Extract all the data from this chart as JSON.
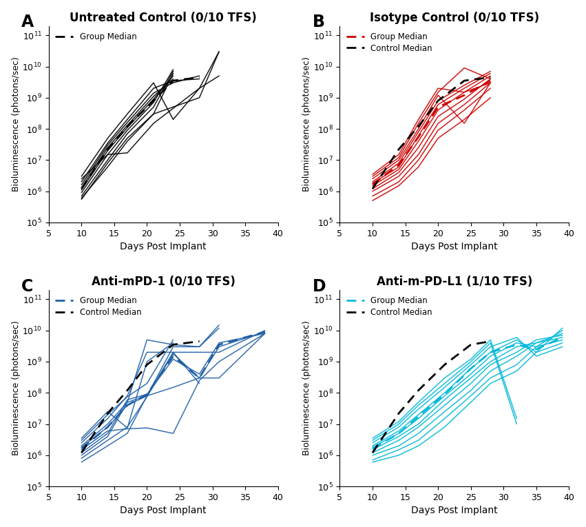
{
  "panel_A": {
    "title": "Untreated Control (0/10 TFS)",
    "label": "A",
    "color": "#000000",
    "mice": [
      {
        "x": [
          10,
          14,
          17,
          21,
          24
        ],
        "y": [
          550000.0,
          8000000.0,
          50000000.0,
          300000000.0,
          6000000000.0
        ]
      },
      {
        "x": [
          10,
          14,
          17,
          21,
          24
        ],
        "y": [
          700000.0,
          10000000.0,
          70000000.0,
          500000000.0,
          7000000000.0
        ]
      },
      {
        "x": [
          10,
          14,
          17,
          21,
          24
        ],
        "y": [
          900000.0,
          15000000.0,
          90000000.0,
          700000000.0,
          8000000000.0
        ]
      },
      {
        "x": [
          10,
          14,
          17,
          21,
          24
        ],
        "y": [
          1100000.0,
          20000000.0,
          110000000.0,
          900000000.0,
          5000000000.0
        ]
      },
      {
        "x": [
          10,
          14,
          17,
          21,
          24
        ],
        "y": [
          1300000.0,
          25000000.0,
          130000000.0,
          1100000000.0,
          4000000000.0
        ]
      },
      {
        "x": [
          10,
          14,
          17,
          21,
          24,
          28
        ],
        "y": [
          1600000.0,
          30000000.0,
          160000000.0,
          1400000000.0,
          3000000000.0,
          5000000000.0
        ]
      },
      {
        "x": [
          10,
          14,
          17,
          21,
          24,
          28
        ],
        "y": [
          2000000.0,
          35000000.0,
          200000000.0,
          2000000000.0,
          3500000000.0,
          4000000000.0
        ]
      },
      {
        "x": [
          10,
          14,
          17,
          21,
          28,
          31
        ],
        "y": [
          2500000.0,
          15000000.0,
          17000000.0,
          150000000.0,
          2000000000.0,
          30000000000.0
        ]
      },
      {
        "x": [
          10,
          14,
          17,
          21,
          24,
          28,
          31
        ],
        "y": [
          3000000.0,
          50000000.0,
          300000000.0,
          3000000000.0,
          200000000.0,
          2000000000.0,
          5000000000.0
        ]
      },
      {
        "x": [
          10,
          14,
          17,
          21,
          28,
          31
        ],
        "y": [
          600000.0,
          6000000.0,
          40000000.0,
          300000000.0,
          1000000000.0,
          30000000000.0
        ]
      }
    ],
    "group_median": {
      "x": [
        10,
        14,
        17,
        21,
        24,
        28
      ],
      "y": [
        1200000.0,
        22000000.0,
        120000000.0,
        800000000.0,
        3500000000.0,
        4500000000.0
      ]
    }
  },
  "panel_B": {
    "title": "Isotype Control (0/10 TFS)",
    "label": "B",
    "color": "#cc0000",
    "mice": [
      {
        "x": [
          10,
          14,
          17,
          20,
          24,
          28
        ],
        "y": [
          500000.0,
          1500000.0,
          6000000.0,
          50000000.0,
          200000000.0,
          1000000000.0
        ]
      },
      {
        "x": [
          10,
          14,
          17,
          20,
          24,
          28
        ],
        "y": [
          700000.0,
          2000000.0,
          10000000.0,
          90000000.0,
          400000000.0,
          2000000000.0
        ]
      },
      {
        "x": [
          10,
          14,
          17,
          20,
          24,
          28
        ],
        "y": [
          1000000.0,
          3000000.0,
          15000000.0,
          150000000.0,
          600000000.0,
          3000000000.0
        ]
      },
      {
        "x": [
          10,
          14,
          17,
          20,
          24,
          28
        ],
        "y": [
          1200000.0,
          4000000.0,
          25000000.0,
          250000000.0,
          900000000.0,
          4000000000.0
        ]
      },
      {
        "x": [
          10,
          14,
          17,
          20,
          24,
          28
        ],
        "y": [
          1500000.0,
          5000000.0,
          40000000.0,
          400000000.0,
          1500000000.0,
          5000000000.0
        ]
      },
      {
        "x": [
          10,
          14,
          17,
          20,
          24,
          28
        ],
        "y": [
          1800000.0,
          6000000.0,
          60000000.0,
          600000000.0,
          2000000000.0,
          6000000000.0
        ]
      },
      {
        "x": [
          10,
          14,
          17,
          20,
          24,
          28
        ],
        "y": [
          2000000.0,
          8000000.0,
          80000000.0,
          800000000.0,
          2500000000.0,
          7000000000.0
        ]
      },
      {
        "x": [
          10,
          14,
          17,
          20,
          24,
          28
        ],
        "y": [
          2500000.0,
          10000000.0,
          100000000.0,
          1200000000.0,
          150000000.0,
          3000000000.0
        ]
      },
      {
        "x": [
          10,
          14,
          17,
          20,
          24,
          28
        ],
        "y": [
          3000000.0,
          12000000.0,
          150000000.0,
          1500000000.0,
          9000000000.0,
          4000000000.0
        ]
      },
      {
        "x": [
          10,
          14,
          17,
          20,
          24,
          28
        ],
        "y": [
          3500000.0,
          15000000.0,
          200000000.0,
          2000000000.0,
          1500000000.0,
          3000000000.0
        ]
      }
    ],
    "group_median": {
      "x": [
        10,
        14,
        17,
        20,
        24,
        28
      ],
      "y": [
        1650000.0,
        7000000.0,
        55000000.0,
        500000000.0,
        1200000000.0,
        3500000000.0
      ]
    },
    "control_median": {
      "x": [
        10,
        14,
        17,
        20,
        24,
        28
      ],
      "y": [
        1200000.0,
        22000000.0,
        120000000.0,
        800000000.0,
        3500000000.0,
        4500000000.0
      ]
    }
  },
  "panel_C": {
    "title": "Anti-mPD-1 (0/10 TFS)",
    "label": "C",
    "color": "#1f5fa6",
    "mice": [
      {
        "x": [
          10,
          14,
          17,
          20,
          24,
          28,
          31,
          38
        ],
        "y": [
          600000.0,
          2000000.0,
          5000000.0,
          80000000.0,
          2000000000.0,
          2000000000.0,
          2000000000.0,
          10000000000.0
        ]
      },
      {
        "x": [
          10,
          14,
          17,
          20,
          24,
          28,
          31,
          38
        ],
        "y": [
          800000.0,
          3000000.0,
          8000000.0,
          75000000.0,
          1800000000.0,
          300000000.0,
          300000000.0,
          8000000000.0
        ]
      },
      {
        "x": [
          10,
          14,
          17,
          20,
          24,
          28,
          31,
          38
        ],
        "y": [
          1000000.0,
          4000000.0,
          50000000.0,
          80000000.0,
          150000000.0,
          300000000.0,
          3000000000.0,
          9000000000.0
        ]
      },
      {
        "x": [
          10,
          14,
          17,
          20,
          24,
          28,
          31,
          38
        ],
        "y": [
          1200000.0,
          5000000.0,
          60000000.0,
          90000000.0,
          1200000000.0,
          400000000.0,
          4000000000.0,
          8000000000.0
        ]
      },
      {
        "x": [
          10,
          14,
          17,
          20,
          24,
          28,
          31,
          38
        ],
        "y": [
          1500000.0,
          6000000.0,
          7000000.0,
          7500000.0,
          5000000.0,
          250000000.0,
          1000000000.0,
          8000000000.0
        ]
      },
      {
        "x": [
          10,
          14,
          17,
          20,
          24,
          28,
          31
        ],
        "y": [
          1800000.0,
          8000000.0,
          40000000.0,
          80000000.0,
          3000000000.0,
          3000000000.0,
          15000000000.0
        ]
      },
      {
        "x": [
          10,
          14,
          17,
          20,
          24,
          28,
          31
        ],
        "y": [
          2000000.0,
          10000000.0,
          50000000.0,
          5000000000.0,
          3500000000.0,
          3000000000.0,
          12000000000.0
        ]
      },
      {
        "x": [
          10,
          14,
          17,
          20,
          24,
          28
        ],
        "y": [
          2500000.0,
          15000000.0,
          80000000.0,
          2000000000.0,
          2000000000.0,
          200000000.0
        ]
      },
      {
        "x": [
          10,
          14,
          17,
          20,
          24
        ],
        "y": [
          3000000.0,
          20000000.0,
          75000000.0,
          200000000.0,
          5000000000.0
        ]
      },
      {
        "x": [
          10,
          14,
          17,
          20,
          24
        ],
        "y": [
          3500000.0,
          25000000.0,
          7500000.0,
          1000000000.0,
          4000000000.0
        ]
      }
    ],
    "group_median": {
      "x": [
        10,
        14,
        17,
        20,
        24,
        28,
        31,
        38
      ],
      "y": [
        1650000.0,
        8000000.0,
        40000000.0,
        90000000.0,
        1500000000.0,
        300000000.0,
        3500000000.0,
        9000000000.0
      ]
    },
    "control_median": {
      "x": [
        10,
        14,
        17,
        20,
        24,
        28
      ],
      "y": [
        1200000.0,
        22000000.0,
        120000000.0,
        800000000.0,
        3500000000.0,
        4500000000.0
      ]
    }
  },
  "panel_D": {
    "title": "Anti-m-PD-L1 (1/10 TFS)",
    "label": "D",
    "color": "#00b8d9",
    "mice": [
      {
        "x": [
          10,
          14,
          17,
          21,
          25,
          28,
          32,
          35,
          39
        ],
        "y": [
          600000.0,
          1000000.0,
          2000000.0,
          8000000.0,
          50000000.0,
          200000000.0,
          500000000.0,
          2000000000.0,
          12000000000.0
        ]
      },
      {
        "x": [
          10,
          14,
          17,
          21,
          25,
          28,
          32,
          35,
          39
        ],
        "y": [
          700000.0,
          1500000.0,
          3000000.0,
          15000000.0,
          80000000.0,
          300000000.0,
          800000000.0,
          3000000000.0,
          10000000000.0
        ]
      },
      {
        "x": [
          10,
          14,
          17,
          21,
          25,
          28,
          32,
          35,
          39
        ],
        "y": [
          1000000.0,
          2000000.0,
          5000000.0,
          25000000.0,
          120000000.0,
          500000000.0,
          1500000000.0,
          4000000000.0,
          8000000000.0
        ]
      },
      {
        "x": [
          10,
          14,
          17,
          21,
          25,
          28,
          32,
          35,
          39
        ],
        "y": [
          1200000.0,
          3000000.0,
          8000000.0,
          40000000.0,
          200000000.0,
          800000000.0,
          2000000000.0,
          5000000000.0,
          7000000000.0
        ]
      },
      {
        "x": [
          10,
          14,
          17,
          21,
          25,
          28,
          32,
          35,
          39
        ],
        "y": [
          1500000.0,
          4000000.0,
          10000000.0,
          60000000.0,
          300000000.0,
          1000000000.0,
          3000000000.0,
          4000000000.0,
          6000000000.0
        ]
      },
      {
        "x": [
          10,
          14,
          17,
          21,
          25,
          28,
          32,
          35,
          39
        ],
        "y": [
          1800000.0,
          5000000.0,
          15000000.0,
          80000000.0,
          400000000.0,
          1500000000.0,
          4000000000.0,
          3000000000.0,
          5000000000.0
        ]
      },
      {
        "x": [
          10,
          14,
          17,
          21,
          25,
          28,
          32,
          35,
          39
        ],
        "y": [
          2000000.0,
          6000000.0,
          20000000.0,
          100000000.0,
          600000000.0,
          2000000000.0,
          5000000000.0,
          2000000000.0,
          4000000000.0
        ]
      },
      {
        "x": [
          10,
          14,
          17,
          21,
          25,
          28,
          32,
          35,
          39
        ],
        "y": [
          2500000.0,
          8000000.0,
          30000000.0,
          150000000.0,
          800000000.0,
          3000000000.0,
          6000000000.0,
          1500000000.0,
          3000000000.0
        ]
      },
      {
        "x": [
          10,
          14,
          17,
          21,
          25,
          28,
          32
        ],
        "y": [
          3000000.0,
          10000000.0,
          40000000.0,
          200000000.0,
          1000000000.0,
          4000000000.0,
          10000000.0
        ]
      },
      {
        "x": [
          10,
          14,
          17,
          21,
          25,
          28,
          32
        ],
        "y": [
          3500000.0,
          12000000.0,
          50000000.0,
          300000000.0,
          1200000000.0,
          5000000000.0,
          15000000.0
        ]
      }
    ],
    "group_median": {
      "x": [
        10,
        14,
        17,
        21,
        25,
        28,
        32,
        35,
        39
      ],
      "y": [
        1650000.0,
        5000000.0,
        17500000.0,
        90000000.0,
        600000000.0,
        2000000000.0,
        3500000000.0,
        2500000000.0,
        6000000000.0
      ]
    },
    "control_median": {
      "x": [
        10,
        14,
        17,
        21,
        25,
        28
      ],
      "y": [
        1200000.0,
        22000000.0,
        120000000.0,
        800000000.0,
        3500000000.0,
        4500000000.0
      ]
    }
  },
  "xlim": [
    5,
    40
  ],
  "ylim": [
    100000.0,
    200000000000.0
  ],
  "xlabel": "Days Post Implant",
  "ylabel": "Bioluminescence (photons/sec)",
  "xticks": [
    5,
    10,
    15,
    20,
    25,
    30,
    35,
    40
  ],
  "yticks": [
    100000.0,
    1000000.0,
    10000000.0,
    100000000.0,
    1000000000.0,
    10000000000.0,
    100000000000.0
  ]
}
